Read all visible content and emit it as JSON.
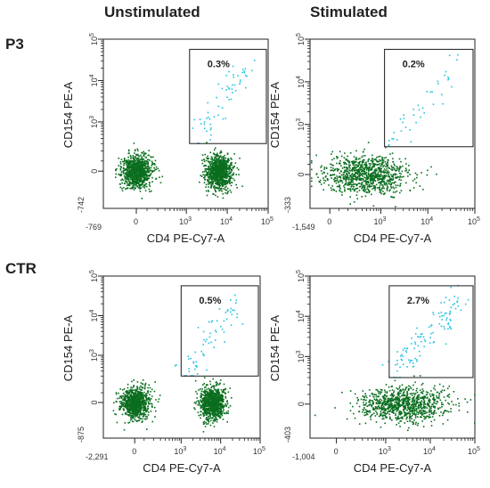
{
  "column_titles": [
    "Unstimulated",
    "Stimulated"
  ],
  "row_titles": [
    "P3",
    "CTR"
  ],
  "colors": {
    "population": "#0a6e1e",
    "gated_events": "#22c3e0",
    "gate_line": "#1a1a1a",
    "axis": "#222222"
  },
  "chart_data": [
    {
      "type": "scatter",
      "panel": "P3 Unstimulated",
      "xlabel": "CD4 PE-Cy7-A",
      "ylabel": "CD154 PE-A",
      "x_scale": "biexponential",
      "y_scale": "biexponential",
      "x_min_label": "-769",
      "y_min_label": "-742",
      "xlim": [
        -769,
        100000
      ],
      "ylim": [
        -742,
        100000
      ],
      "x_tick_labels": [
        "0",
        "10^3",
        "10^4",
        "10^5"
      ],
      "y_tick_labels": [
        "0",
        "10^3",
        "10^4",
        "10^5"
      ],
      "gate": {
        "x": [
          1200,
          100000
        ],
        "y": [
          300,
          100000
        ],
        "label": "0.3%"
      },
      "populations": [
        {
          "name": "CD4-",
          "x_center": 0,
          "y_center": 0
        },
        {
          "name": "CD4+",
          "x_center": 6000,
          "y_center": 0
        }
      ],
      "gated_points": 60
    },
    {
      "type": "scatter",
      "panel": "P3 Stimulated",
      "xlabel": "CD4 PE-Cy7-A",
      "ylabel": "CD154 PE-A",
      "x_scale": "biexponential",
      "y_scale": "biexponential",
      "x_min_label": "-1,549",
      "y_min_label": "-333",
      "xlim": [
        -1549,
        100000
      ],
      "ylim": [
        -333,
        100000
      ],
      "x_tick_labels": [
        "0",
        "10^3",
        "10^4",
        "10^5"
      ],
      "y_tick_labels": [
        "0",
        "10^3",
        "10^4",
        "10^5"
      ],
      "gate": {
        "x": [
          1200,
          100000
        ],
        "y": [
          300,
          100000
        ],
        "label": "0.2%"
      },
      "populations": [
        {
          "name": "CD4 combined",
          "x_center": 300,
          "y_center": 0
        }
      ],
      "gated_points": 40
    },
    {
      "type": "scatter",
      "panel": "CTR Unstimulated",
      "xlabel": "CD4 PE-Cy7-A",
      "ylabel": "CD154 PE-A",
      "x_scale": "biexponential",
      "y_scale": "biexponential",
      "x_min_label": "-2,291",
      "y_min_label": "-875",
      "xlim": [
        -2291,
        100000
      ],
      "ylim": [
        -875,
        100000
      ],
      "x_tick_labels": [
        "0",
        "10^3",
        "10^4",
        "10^5"
      ],
      "y_tick_labels": [
        "0",
        "10^3",
        "10^4",
        "10^5"
      ],
      "gate": {
        "x": [
          1000,
          100000
        ],
        "y": [
          300,
          100000
        ],
        "label": "0.5%"
      },
      "populations": [
        {
          "name": "CD4-",
          "x_center": 0,
          "y_center": 0
        },
        {
          "name": "CD4+",
          "x_center": 6000,
          "y_center": 0
        }
      ],
      "gated_points": 70
    },
    {
      "type": "scatter",
      "panel": "CTR Stimulated",
      "xlabel": "CD4 PE-Cy7-A",
      "ylabel": "CD154 PE-A",
      "x_scale": "biexponential",
      "y_scale": "biexponential",
      "x_min_label": "-1,004",
      "y_min_label": "-403",
      "xlim": [
        -1004,
        100000
      ],
      "ylim": [
        -403,
        100000
      ],
      "x_tick_labels": [
        "0",
        "10^3",
        "10^4",
        "10^5"
      ],
      "y_tick_labels": [
        "0",
        "10^3",
        "10^4",
        "10^5"
      ],
      "gate": {
        "x": [
          1200,
          100000
        ],
        "y": [
          300,
          100000
        ],
        "label": "2.7%"
      },
      "populations": [
        {
          "name": "CD4 combined",
          "x_center": 1500,
          "y_center": 0
        }
      ],
      "gated_points": 110
    }
  ]
}
